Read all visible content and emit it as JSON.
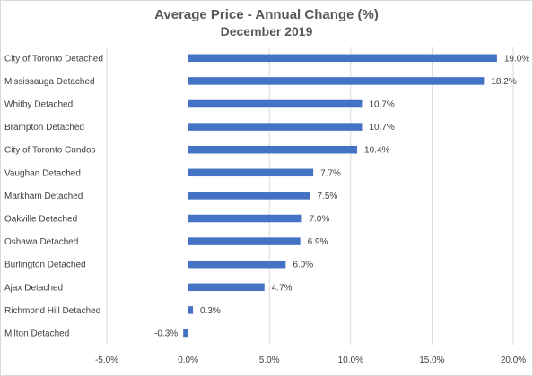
{
  "chart_data": {
    "type": "bar",
    "orientation": "horizontal",
    "title": "Average Price - Annual Change (%)",
    "subtitle": "December 2019",
    "categories": [
      "City of Toronto Detached",
      "Mississauga Detached",
      "Whitby Detached",
      "Brampton Detached",
      "City of Toronto Condos",
      "Vaughan Detached",
      "Markham Detached",
      "Oakville Detached",
      "Oshawa Detached",
      "Burlington Detached",
      "Ajax Detached",
      "Richmond Hill Detached",
      "Milton Detached"
    ],
    "values": [
      19.0,
      18.2,
      10.7,
      10.7,
      10.4,
      7.7,
      7.5,
      7.0,
      6.9,
      6.0,
      4.7,
      0.3,
      -0.3
    ],
    "data_labels": [
      "19.0%",
      "18.2%",
      "10.7%",
      "10.7%",
      "10.4%",
      "7.7%",
      "7.5%",
      "7.0%",
      "6.9%",
      "6.0%",
      "4.7%",
      "0.3%",
      "-0.3%"
    ],
    "xlim": [
      -5,
      20
    ],
    "xticks": [
      -5,
      0,
      5,
      10,
      15,
      20
    ],
    "xtick_labels": [
      "-5.0%",
      "0.0%",
      "5.0%",
      "10.0%",
      "15.0%",
      "20.0%"
    ],
    "xlabel": "",
    "ylabel": "",
    "grid": "vertical",
    "legend": "none",
    "colors": {
      "bar": "#4472c4",
      "grid": "#d9d9d9",
      "text": "#404040",
      "title": "#595959"
    }
  }
}
